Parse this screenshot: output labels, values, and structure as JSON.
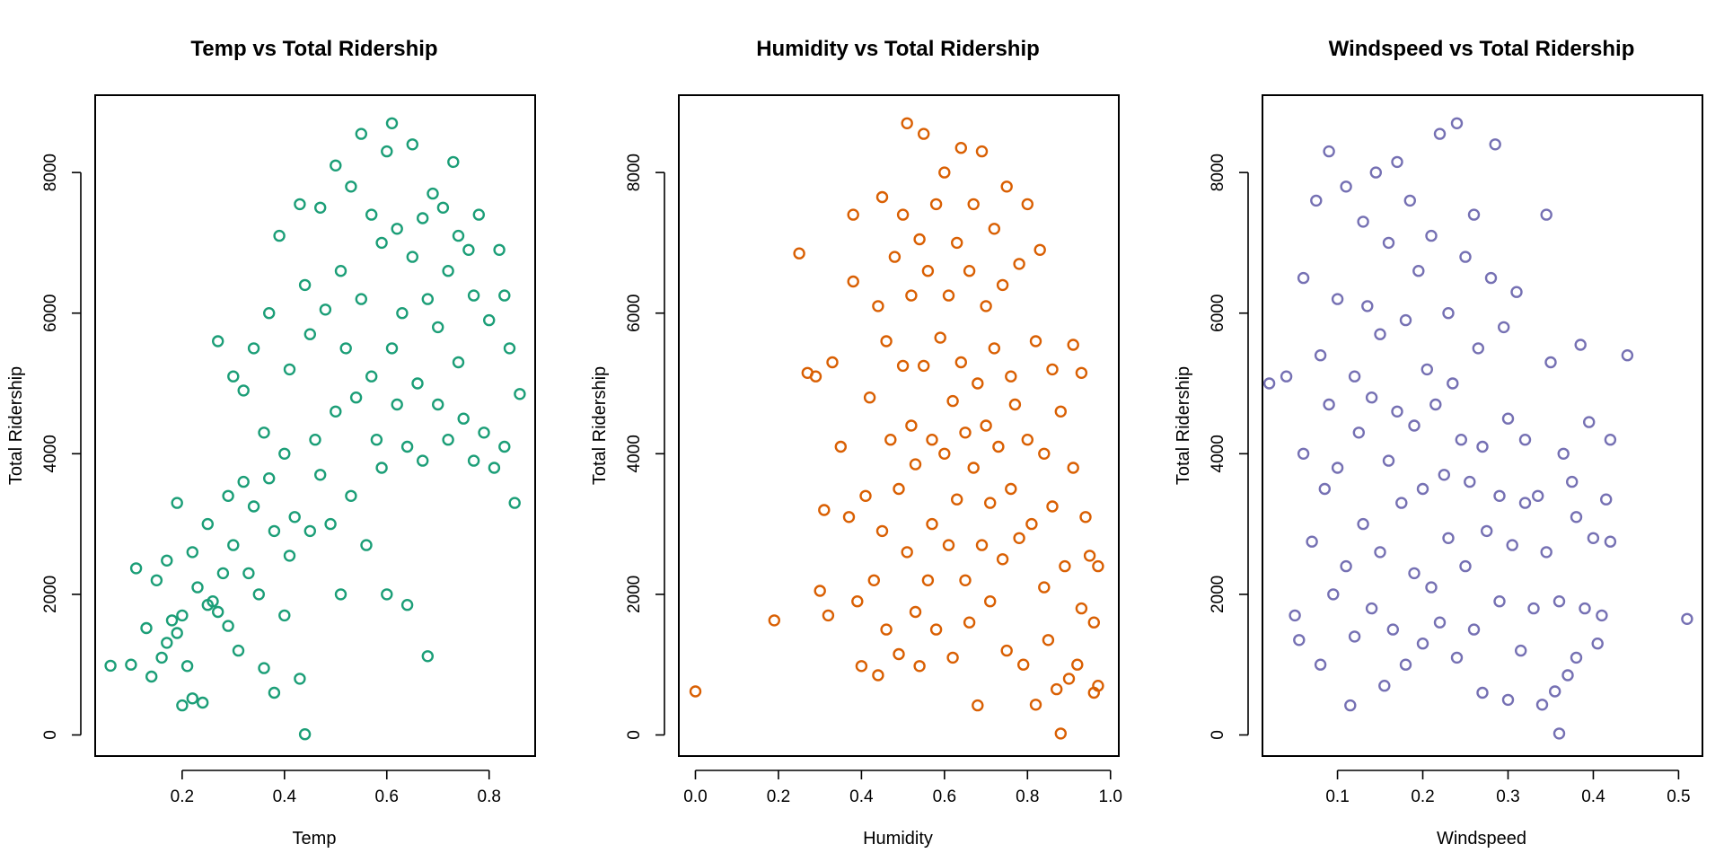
{
  "chart_data": [
    {
      "type": "scatter",
      "title": "Temp vs Total Ridership",
      "xlabel": "Temp",
      "ylabel": "Total Ridership",
      "xlim": [
        0.03,
        0.89
      ],
      "ylim": [
        -300,
        9100
      ],
      "xticks": [
        0.2,
        0.4,
        0.6,
        0.8
      ],
      "xtick_labels": [
        "0.2",
        "0.4",
        "0.6",
        "0.8"
      ],
      "yticks": [
        0,
        2000,
        4000,
        6000,
        8000
      ],
      "ytick_labels": [
        "0",
        "2000",
        "4000",
        "6000",
        "8000"
      ],
      "color": "#1B9E77",
      "marker": "open-circle",
      "grid": false,
      "points": [
        [
          0.06,
          985
        ],
        [
          0.1,
          1000
        ],
        [
          0.11,
          2370
        ],
        [
          0.13,
          1520
        ],
        [
          0.14,
          830
        ],
        [
          0.15,
          2200
        ],
        [
          0.16,
          1100
        ],
        [
          0.17,
          2480
        ],
        [
          0.17,
          1310
        ],
        [
          0.18,
          1630
        ],
        [
          0.19,
          1450
        ],
        [
          0.19,
          3300
        ],
        [
          0.2,
          420
        ],
        [
          0.2,
          1700
        ],
        [
          0.21,
          980
        ],
        [
          0.22,
          520
        ],
        [
          0.22,
          2600
        ],
        [
          0.23,
          2100
        ],
        [
          0.24,
          460
        ],
        [
          0.25,
          1850
        ],
        [
          0.25,
          3000
        ],
        [
          0.26,
          1900
        ],
        [
          0.27,
          1750
        ],
        [
          0.27,
          5600
        ],
        [
          0.28,
          2300
        ],
        [
          0.29,
          3400
        ],
        [
          0.29,
          1550
        ],
        [
          0.3,
          2700
        ],
        [
          0.3,
          5100
        ],
        [
          0.31,
          1200
        ],
        [
          0.32,
          4900
        ],
        [
          0.32,
          3600
        ],
        [
          0.33,
          2300
        ],
        [
          0.34,
          5500
        ],
        [
          0.34,
          3250
        ],
        [
          0.35,
          2000
        ],
        [
          0.36,
          950
        ],
        [
          0.36,
          4300
        ],
        [
          0.37,
          6000
        ],
        [
          0.37,
          3650
        ],
        [
          0.38,
          2900
        ],
        [
          0.38,
          600
        ],
        [
          0.39,
          7100
        ],
        [
          0.4,
          4000
        ],
        [
          0.4,
          1700
        ],
        [
          0.41,
          5200
        ],
        [
          0.41,
          2550
        ],
        [
          0.42,
          3100
        ],
        [
          0.43,
          7550
        ],
        [
          0.43,
          800
        ],
        [
          0.44,
          6400
        ],
        [
          0.44,
          10
        ],
        [
          0.45,
          2900
        ],
        [
          0.45,
          5700
        ],
        [
          0.46,
          4200
        ],
        [
          0.47,
          7500
        ],
        [
          0.47,
          3700
        ],
        [
          0.48,
          6050
        ],
        [
          0.49,
          3000
        ],
        [
          0.5,
          4600
        ],
        [
          0.5,
          8100
        ],
        [
          0.51,
          2000
        ],
        [
          0.51,
          6600
        ],
        [
          0.52,
          5500
        ],
        [
          0.53,
          7800
        ],
        [
          0.53,
          3400
        ],
        [
          0.54,
          4800
        ],
        [
          0.55,
          8550
        ],
        [
          0.55,
          6200
        ],
        [
          0.56,
          2700
        ],
        [
          0.57,
          7400
        ],
        [
          0.57,
          5100
        ],
        [
          0.58,
          4200
        ],
        [
          0.59,
          7000
        ],
        [
          0.59,
          3800
        ],
        [
          0.6,
          8300
        ],
        [
          0.6,
          2000
        ],
        [
          0.61,
          8700
        ],
        [
          0.61,
          5500
        ],
        [
          0.62,
          4700
        ],
        [
          0.62,
          7200
        ],
        [
          0.63,
          6000
        ],
        [
          0.64,
          1850
        ],
        [
          0.64,
          4100
        ],
        [
          0.65,
          8400
        ],
        [
          0.65,
          6800
        ],
        [
          0.66,
          5000
        ],
        [
          0.67,
          7350
        ],
        [
          0.67,
          3900
        ],
        [
          0.68,
          1120
        ],
        [
          0.68,
          6200
        ],
        [
          0.69,
          7700
        ],
        [
          0.7,
          4700
        ],
        [
          0.7,
          5800
        ],
        [
          0.71,
          7500
        ],
        [
          0.72,
          6600
        ],
        [
          0.72,
          4200
        ],
        [
          0.73,
          8150
        ],
        [
          0.74,
          7100
        ],
        [
          0.74,
          5300
        ],
        [
          0.75,
          4500
        ],
        [
          0.76,
          6900
        ],
        [
          0.77,
          3900
        ],
        [
          0.77,
          6250
        ],
        [
          0.78,
          7400
        ],
        [
          0.79,
          4300
        ],
        [
          0.8,
          5900
        ],
        [
          0.81,
          3800
        ],
        [
          0.82,
          6900
        ],
        [
          0.83,
          4100
        ],
        [
          0.83,
          6250
        ],
        [
          0.84,
          5500
        ],
        [
          0.85,
          3300
        ],
        [
          0.86,
          4850
        ]
      ]
    },
    {
      "type": "scatter",
      "title": "Humidity vs Total Ridership",
      "xlabel": "Humidity",
      "ylabel": "Total Ridership",
      "xlim": [
        -0.04,
        1.02
      ],
      "ylim": [
        -300,
        9100
      ],
      "xticks": [
        0.0,
        0.2,
        0.4,
        0.6,
        0.8,
        1.0
      ],
      "xtick_labels": [
        "0.0",
        "0.2",
        "0.4",
        "0.6",
        "0.8",
        "1.0"
      ],
      "yticks": [
        0,
        2000,
        4000,
        6000,
        8000
      ],
      "ytick_labels": [
        "0",
        "2000",
        "4000",
        "6000",
        "8000"
      ],
      "color": "#D95F02",
      "marker": "open-circle",
      "grid": false,
      "points": [
        [
          0.0,
          620
        ],
        [
          0.19,
          1630
        ],
        [
          0.25,
          6850
        ],
        [
          0.27,
          5150
        ],
        [
          0.29,
          5100
        ],
        [
          0.3,
          2050
        ],
        [
          0.31,
          3200
        ],
        [
          0.32,
          1700
        ],
        [
          0.33,
          5300
        ],
        [
          0.35,
          4100
        ],
        [
          0.37,
          3100
        ],
        [
          0.38,
          6450
        ],
        [
          0.38,
          7400
        ],
        [
          0.39,
          1900
        ],
        [
          0.4,
          980
        ],
        [
          0.41,
          3400
        ],
        [
          0.42,
          4800
        ],
        [
          0.43,
          2200
        ],
        [
          0.44,
          6100
        ],
        [
          0.44,
          850
        ],
        [
          0.45,
          7650
        ],
        [
          0.45,
          2900
        ],
        [
          0.46,
          5600
        ],
        [
          0.46,
          1500
        ],
        [
          0.47,
          4200
        ],
        [
          0.48,
          6800
        ],
        [
          0.49,
          3500
        ],
        [
          0.49,
          1150
        ],
        [
          0.5,
          5250
        ],
        [
          0.5,
          7400
        ],
        [
          0.51,
          8700
        ],
        [
          0.51,
          2600
        ],
        [
          0.52,
          4400
        ],
        [
          0.52,
          6250
        ],
        [
          0.53,
          3850
        ],
        [
          0.53,
          1750
        ],
        [
          0.54,
          7050
        ],
        [
          0.54,
          980
        ],
        [
          0.55,
          5250
        ],
        [
          0.55,
          8550
        ],
        [
          0.56,
          2200
        ],
        [
          0.56,
          6600
        ],
        [
          0.57,
          4200
        ],
        [
          0.57,
          3000
        ],
        [
          0.58,
          7550
        ],
        [
          0.58,
          1500
        ],
        [
          0.59,
          5650
        ],
        [
          0.6,
          4000
        ],
        [
          0.6,
          8000
        ],
        [
          0.61,
          2700
        ],
        [
          0.61,
          6250
        ],
        [
          0.62,
          4750
        ],
        [
          0.62,
          1100
        ],
        [
          0.63,
          7000
        ],
        [
          0.63,
          3350
        ],
        [
          0.64,
          5300
        ],
        [
          0.64,
          8350
        ],
        [
          0.65,
          2200
        ],
        [
          0.65,
          4300
        ],
        [
          0.66,
          6600
        ],
        [
          0.66,
          1600
        ],
        [
          0.67,
          3800
        ],
        [
          0.67,
          7550
        ],
        [
          0.68,
          5000
        ],
        [
          0.68,
          420
        ],
        [
          0.69,
          2700
        ],
        [
          0.69,
          8300
        ],
        [
          0.7,
          4400
        ],
        [
          0.7,
          6100
        ],
        [
          0.71,
          3300
        ],
        [
          0.71,
          1900
        ],
        [
          0.72,
          5500
        ],
        [
          0.72,
          7200
        ],
        [
          0.73,
          4100
        ],
        [
          0.74,
          2500
        ],
        [
          0.74,
          6400
        ],
        [
          0.75,
          1200
        ],
        [
          0.75,
          7800
        ],
        [
          0.76,
          3500
        ],
        [
          0.76,
          5100
        ],
        [
          0.77,
          4700
        ],
        [
          0.78,
          2800
        ],
        [
          0.78,
          6700
        ],
        [
          0.79,
          1000
        ],
        [
          0.8,
          4200
        ],
        [
          0.8,
          7550
        ],
        [
          0.81,
          3000
        ],
        [
          0.82,
          5600
        ],
        [
          0.82,
          430
        ],
        [
          0.83,
          6900
        ],
        [
          0.84,
          2100
        ],
        [
          0.84,
          4000
        ],
        [
          0.85,
          1350
        ],
        [
          0.86,
          5200
        ],
        [
          0.86,
          3250
        ],
        [
          0.87,
          650
        ],
        [
          0.88,
          20
        ],
        [
          0.88,
          4600
        ],
        [
          0.89,
          2400
        ],
        [
          0.9,
          800
        ],
        [
          0.91,
          3800
        ],
        [
          0.91,
          5550
        ],
        [
          0.92,
          1000
        ],
        [
          0.93,
          5150
        ],
        [
          0.93,
          1800
        ],
        [
          0.94,
          3100
        ],
        [
          0.95,
          2550
        ],
        [
          0.96,
          1600
        ],
        [
          0.96,
          600
        ],
        [
          0.97,
          2400
        ],
        [
          0.97,
          700
        ]
      ]
    },
    {
      "type": "scatter",
      "title": "Windspeed vs Total Ridership",
      "xlabel": "Windspeed",
      "ylabel": "Total Ridership",
      "xlim": [
        0.012,
        0.528
      ],
      "ylim": [
        -300,
        9100
      ],
      "xticks": [
        0.1,
        0.2,
        0.3,
        0.4,
        0.5
      ],
      "xtick_labels": [
        "0.1",
        "0.2",
        "0.3",
        "0.4",
        "0.5"
      ],
      "yticks": [
        0,
        2000,
        4000,
        6000,
        8000
      ],
      "ytick_labels": [
        "0",
        "2000",
        "4000",
        "6000",
        "8000"
      ],
      "color": "#7570B3",
      "marker": "open-circle",
      "grid": false,
      "points": [
        [
          0.02,
          5000
        ],
        [
          0.04,
          5100
        ],
        [
          0.05,
          1700
        ],
        [
          0.055,
          1350
        ],
        [
          0.06,
          6500
        ],
        [
          0.06,
          4000
        ],
        [
          0.07,
          2750
        ],
        [
          0.075,
          7600
        ],
        [
          0.08,
          1000
        ],
        [
          0.08,
          5400
        ],
        [
          0.085,
          3500
        ],
        [
          0.09,
          8300
        ],
        [
          0.09,
          4700
        ],
        [
          0.095,
          2000
        ],
        [
          0.1,
          6200
        ],
        [
          0.1,
          3800
        ],
        [
          0.11,
          7800
        ],
        [
          0.11,
          2400
        ],
        [
          0.115,
          420
        ],
        [
          0.12,
          5100
        ],
        [
          0.12,
          1400
        ],
        [
          0.125,
          4300
        ],
        [
          0.13,
          7300
        ],
        [
          0.13,
          3000
        ],
        [
          0.135,
          6100
        ],
        [
          0.14,
          1800
        ],
        [
          0.14,
          4800
        ],
        [
          0.145,
          8000
        ],
        [
          0.15,
          2600
        ],
        [
          0.15,
          5700
        ],
        [
          0.155,
          700
        ],
        [
          0.16,
          3900
        ],
        [
          0.16,
          7000
        ],
        [
          0.165,
          1500
        ],
        [
          0.17,
          4600
        ],
        [
          0.17,
          8150
        ],
        [
          0.175,
          3300
        ],
        [
          0.18,
          5900
        ],
        [
          0.18,
          1000
        ],
        [
          0.185,
          7600
        ],
        [
          0.19,
          2300
        ],
        [
          0.19,
          4400
        ],
        [
          0.195,
          6600
        ],
        [
          0.2,
          3500
        ],
        [
          0.2,
          1300
        ],
        [
          0.205,
          5200
        ],
        [
          0.21,
          7100
        ],
        [
          0.21,
          2100
        ],
        [
          0.215,
          4700
        ],
        [
          0.22,
          8550
        ],
        [
          0.22,
          1600
        ],
        [
          0.225,
          3700
        ],
        [
          0.23,
          6000
        ],
        [
          0.23,
          2800
        ],
        [
          0.235,
          5000
        ],
        [
          0.24,
          8700
        ],
        [
          0.24,
          1100
        ],
        [
          0.245,
          4200
        ],
        [
          0.25,
          6800
        ],
        [
          0.25,
          2400
        ],
        [
          0.255,
          3600
        ],
        [
          0.26,
          7400
        ],
        [
          0.26,
          1500
        ],
        [
          0.265,
          5500
        ],
        [
          0.27,
          600
        ],
        [
          0.27,
          4100
        ],
        [
          0.275,
          2900
        ],
        [
          0.28,
          6500
        ],
        [
          0.285,
          8400
        ],
        [
          0.29,
          3400
        ],
        [
          0.29,
          1900
        ],
        [
          0.295,
          5800
        ],
        [
          0.3,
          500
        ],
        [
          0.3,
          4500
        ],
        [
          0.305,
          2700
        ],
        [
          0.31,
          6300
        ],
        [
          0.315,
          1200
        ],
        [
          0.32,
          3300
        ],
        [
          0.32,
          4200
        ],
        [
          0.33,
          1800
        ],
        [
          0.335,
          3400
        ],
        [
          0.34,
          430
        ],
        [
          0.345,
          7400
        ],
        [
          0.345,
          2600
        ],
        [
          0.35,
          5300
        ],
        [
          0.355,
          620
        ],
        [
          0.36,
          1900
        ],
        [
          0.36,
          20
        ],
        [
          0.365,
          4000
        ],
        [
          0.37,
          850
        ],
        [
          0.375,
          3600
        ],
        [
          0.38,
          1100
        ],
        [
          0.38,
          3100
        ],
        [
          0.385,
          5550
        ],
        [
          0.39,
          1800
        ],
        [
          0.395,
          4450
        ],
        [
          0.4,
          2800
        ],
        [
          0.405,
          1300
        ],
        [
          0.41,
          1700
        ],
        [
          0.415,
          3350
        ],
        [
          0.42,
          4200
        ],
        [
          0.42,
          2750
        ],
        [
          0.44,
          5400
        ],
        [
          0.51,
          1650
        ]
      ]
    }
  ]
}
